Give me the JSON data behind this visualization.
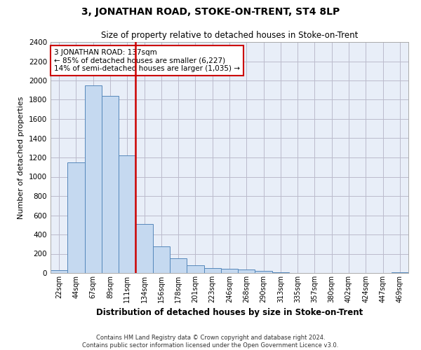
{
  "title": "3, JONATHAN ROAD, STOKE-ON-TRENT, ST4 8LP",
  "subtitle": "Size of property relative to detached houses in Stoke-on-Trent",
  "xlabel": "Distribution of detached houses by size in Stoke-on-Trent",
  "ylabel": "Number of detached properties",
  "categories": [
    "22sqm",
    "44sqm",
    "67sqm",
    "89sqm",
    "111sqm",
    "134sqm",
    "156sqm",
    "178sqm",
    "201sqm",
    "223sqm",
    "246sqm",
    "268sqm",
    "290sqm",
    "313sqm",
    "335sqm",
    "357sqm",
    "380sqm",
    "402sqm",
    "424sqm",
    "447sqm",
    "469sqm"
  ],
  "values": [
    30,
    1150,
    1950,
    1840,
    1220,
    510,
    275,
    155,
    80,
    50,
    45,
    35,
    20,
    10,
    0,
    0,
    0,
    0,
    0,
    0,
    10
  ],
  "bar_color": "#c5d9f0",
  "bar_edge_color": "#5588bb",
  "vline_color": "#cc0000",
  "annotation_text": "3 JONATHAN ROAD: 137sqm\n← 85% of detached houses are smaller (6,227)\n14% of semi-detached houses are larger (1,035) →",
  "annotation_box_color": "#ffffff",
  "annotation_box_edge": "#cc0000",
  "ylim": [
    0,
    2400
  ],
  "yticks": [
    0,
    200,
    400,
    600,
    800,
    1000,
    1200,
    1400,
    1600,
    1800,
    2000,
    2200,
    2400
  ],
  "grid_color": "#bbbbcc",
  "bg_color": "#e8eef8",
  "footer1": "Contains HM Land Registry data © Crown copyright and database right 2024.",
  "footer2": "Contains public sector information licensed under the Open Government Licence v3.0."
}
